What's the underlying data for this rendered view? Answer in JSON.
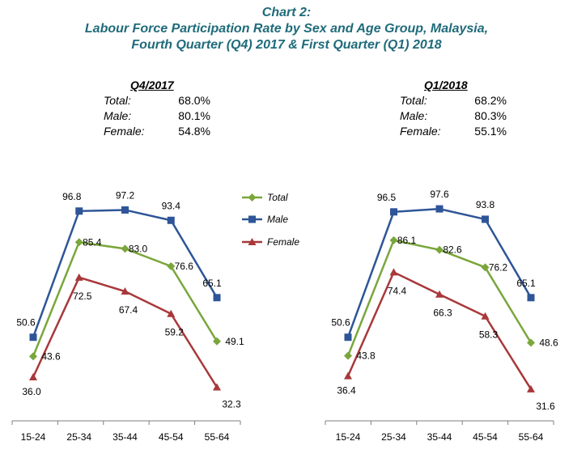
{
  "header": {
    "line1": "Chart 2:",
    "line2": "Labour Force Participation Rate by Sex and Age Group, Malaysia,",
    "line3": "Fourth Quarter (Q4) 2017 & First Quarter (Q1) 2018"
  },
  "colors": {
    "title": "#1f6b7a",
    "total": "#7aa63b",
    "male": "#2e5597",
    "female": "#a8383a",
    "axis": "#7f7f7f"
  },
  "legend": [
    {
      "name": "Total",
      "marker": "diamond"
    },
    {
      "name": "Male",
      "marker": "square"
    },
    {
      "name": "Female",
      "marker": "triangle"
    }
  ],
  "panels": [
    {
      "period": "Q4/2017",
      "summary": [
        {
          "label": "Total:",
          "value": "68.0%"
        },
        {
          "label": "Male:",
          "value": "80.1%"
        },
        {
          "label": "Female:",
          "value": "54.8%"
        }
      ]
    },
    {
      "period": "Q1/2018",
      "summary": [
        {
          "label": "Total:",
          "value": "68.2%"
        },
        {
          "label": "Male:",
          "value": "80.3%"
        },
        {
          "label": "Female:",
          "value": "55.1%"
        }
      ]
    }
  ],
  "chart_data": [
    {
      "type": "line",
      "title": "Q4/2017",
      "categories": [
        "15-24",
        "25-34",
        "35-44",
        "45-54",
        "55-64"
      ],
      "series": [
        {
          "name": "Total",
          "values": [
            43.6,
            85.4,
            83.0,
            76.6,
            49.1
          ]
        },
        {
          "name": "Male",
          "values": [
            50.6,
            96.8,
            97.2,
            93.4,
            65.1
          ]
        },
        {
          "name": "Female",
          "values": [
            36.0,
            72.5,
            67.4,
            59.2,
            32.3
          ]
        }
      ],
      "labels": {
        "Total": [
          "43.6",
          "85.4",
          "83.0",
          "76.6",
          "49.1"
        ],
        "Male": [
          "50.6",
          "96.8",
          "97.2",
          "93.4",
          "65.1"
        ],
        "Female": [
          "36.0",
          "72.5",
          "67.4",
          "59.2",
          "32.3"
        ]
      },
      "ylim": [
        20,
        105
      ],
      "grid": false
    },
    {
      "type": "line",
      "title": "Q1/2018",
      "categories": [
        "15-24",
        "25-34",
        "35-44",
        "45-54",
        "55-64"
      ],
      "series": [
        {
          "name": "Total",
          "values": [
            43.8,
            86.1,
            82.6,
            76.2,
            48.6
          ]
        },
        {
          "name": "Male",
          "values": [
            50.6,
            96.5,
            97.6,
            93.8,
            65.1
          ]
        },
        {
          "name": "Female",
          "values": [
            36.4,
            74.4,
            66.3,
            58.3,
            31.6
          ]
        }
      ],
      "labels": {
        "Total": [
          "43.8",
          "86.1",
          "82.6",
          "76.2",
          "48.6"
        ],
        "Male": [
          "50.6",
          "96.5",
          "97.6",
          "93.8",
          "65.1"
        ],
        "Female": [
          "36.4",
          "74.4",
          "66.3",
          "58.3",
          "31.6"
        ]
      },
      "ylim": [
        20,
        105
      ],
      "grid": false
    }
  ]
}
